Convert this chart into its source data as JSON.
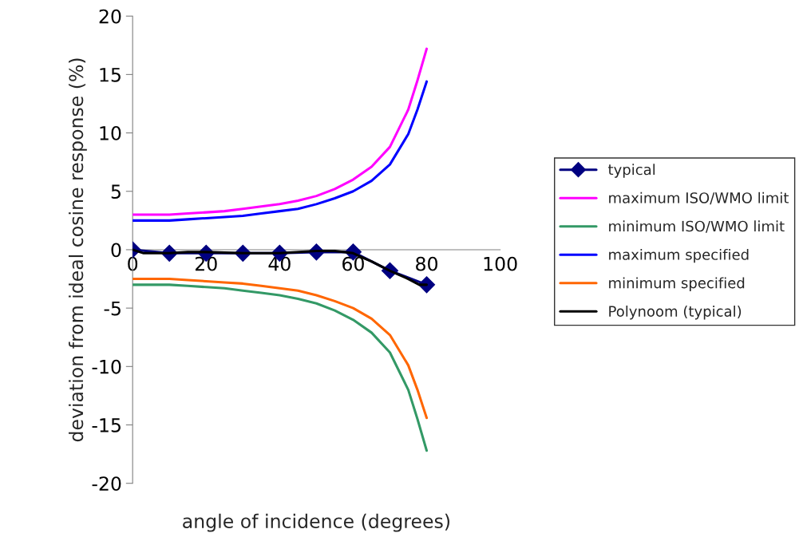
{
  "chart_data": {
    "type": "line",
    "xlabel": "angle of incidence (degrees)",
    "ylabel": "deviation from ideal cosine response (%)",
    "xlim": [
      0,
      100
    ],
    "xticks": [
      0,
      20,
      40,
      60,
      80,
      100
    ],
    "ylim": [
      -20,
      20
    ],
    "yticks": [
      -20,
      -15,
      -10,
      -5,
      0,
      5,
      10,
      15,
      20
    ],
    "grid": false,
    "legend": "right",
    "series": [
      {
        "name": "typical",
        "color": "#000080",
        "marker": "diamond",
        "line_style": "solid",
        "x": [
          0,
          10,
          20,
          30,
          40,
          50,
          60,
          70,
          80
        ],
        "values": [
          0,
          -0.3,
          -0.3,
          -0.3,
          -0.3,
          -0.2,
          -0.2,
          -1.8,
          -3.0
        ]
      },
      {
        "name": "maximum ISO/WMO limit",
        "color": "#ff00ff",
        "marker": "none",
        "x": [
          0,
          5,
          10,
          15,
          20,
          25,
          30,
          35,
          40,
          45,
          50,
          55,
          60,
          65,
          70,
          75,
          77.5,
          80
        ],
        "values": [
          3.0,
          3.0,
          3.0,
          3.1,
          3.2,
          3.3,
          3.5,
          3.7,
          3.9,
          4.2,
          4.6,
          5.2,
          6.0,
          7.1,
          8.8,
          12.0,
          14.5,
          17.2
        ]
      },
      {
        "name": "minimum ISO/WMO limit",
        "color": "#339966",
        "marker": "none",
        "x": [
          0,
          5,
          10,
          15,
          20,
          25,
          30,
          35,
          40,
          45,
          50,
          55,
          60,
          65,
          70,
          75,
          77.5,
          80
        ],
        "values": [
          -3.0,
          -3.0,
          -3.0,
          -3.1,
          -3.2,
          -3.3,
          -3.5,
          -3.7,
          -3.9,
          -4.2,
          -4.6,
          -5.2,
          -6.0,
          -7.1,
          -8.8,
          -12.0,
          -14.5,
          -17.2
        ]
      },
      {
        "name": "maximum specified",
        "color": "#0000ff",
        "marker": "none",
        "x": [
          0,
          5,
          10,
          15,
          20,
          25,
          30,
          35,
          40,
          45,
          50,
          55,
          60,
          65,
          70,
          75,
          77.5,
          80
        ],
        "values": [
          2.5,
          2.5,
          2.5,
          2.6,
          2.7,
          2.8,
          2.9,
          3.1,
          3.3,
          3.5,
          3.9,
          4.4,
          5.0,
          5.9,
          7.3,
          9.9,
          12.0,
          14.4
        ]
      },
      {
        "name": "minimum specified",
        "color": "#ff6600",
        "marker": "none",
        "x": [
          0,
          5,
          10,
          15,
          20,
          25,
          30,
          35,
          40,
          45,
          50,
          55,
          60,
          65,
          70,
          75,
          77.5,
          80
        ],
        "values": [
          -2.5,
          -2.5,
          -2.5,
          -2.6,
          -2.7,
          -2.8,
          -2.9,
          -3.1,
          -3.3,
          -3.5,
          -3.9,
          -4.4,
          -5.0,
          -5.9,
          -7.3,
          -9.9,
          -12.0,
          -14.4
        ]
      },
      {
        "name": "Polynoom (typical)",
        "color": "#000000",
        "marker": "none",
        "x": [
          0,
          3,
          10,
          15,
          20,
          30,
          40,
          50,
          55,
          60,
          62,
          65,
          70,
          75,
          78,
          80
        ],
        "values": [
          0,
          -0.3,
          -0.3,
          -0.2,
          -0.2,
          -0.3,
          -0.3,
          -0.1,
          -0.1,
          -0.3,
          -0.6,
          -1.0,
          -1.8,
          -2.5,
          -3.0,
          -3.0
        ]
      }
    ]
  }
}
